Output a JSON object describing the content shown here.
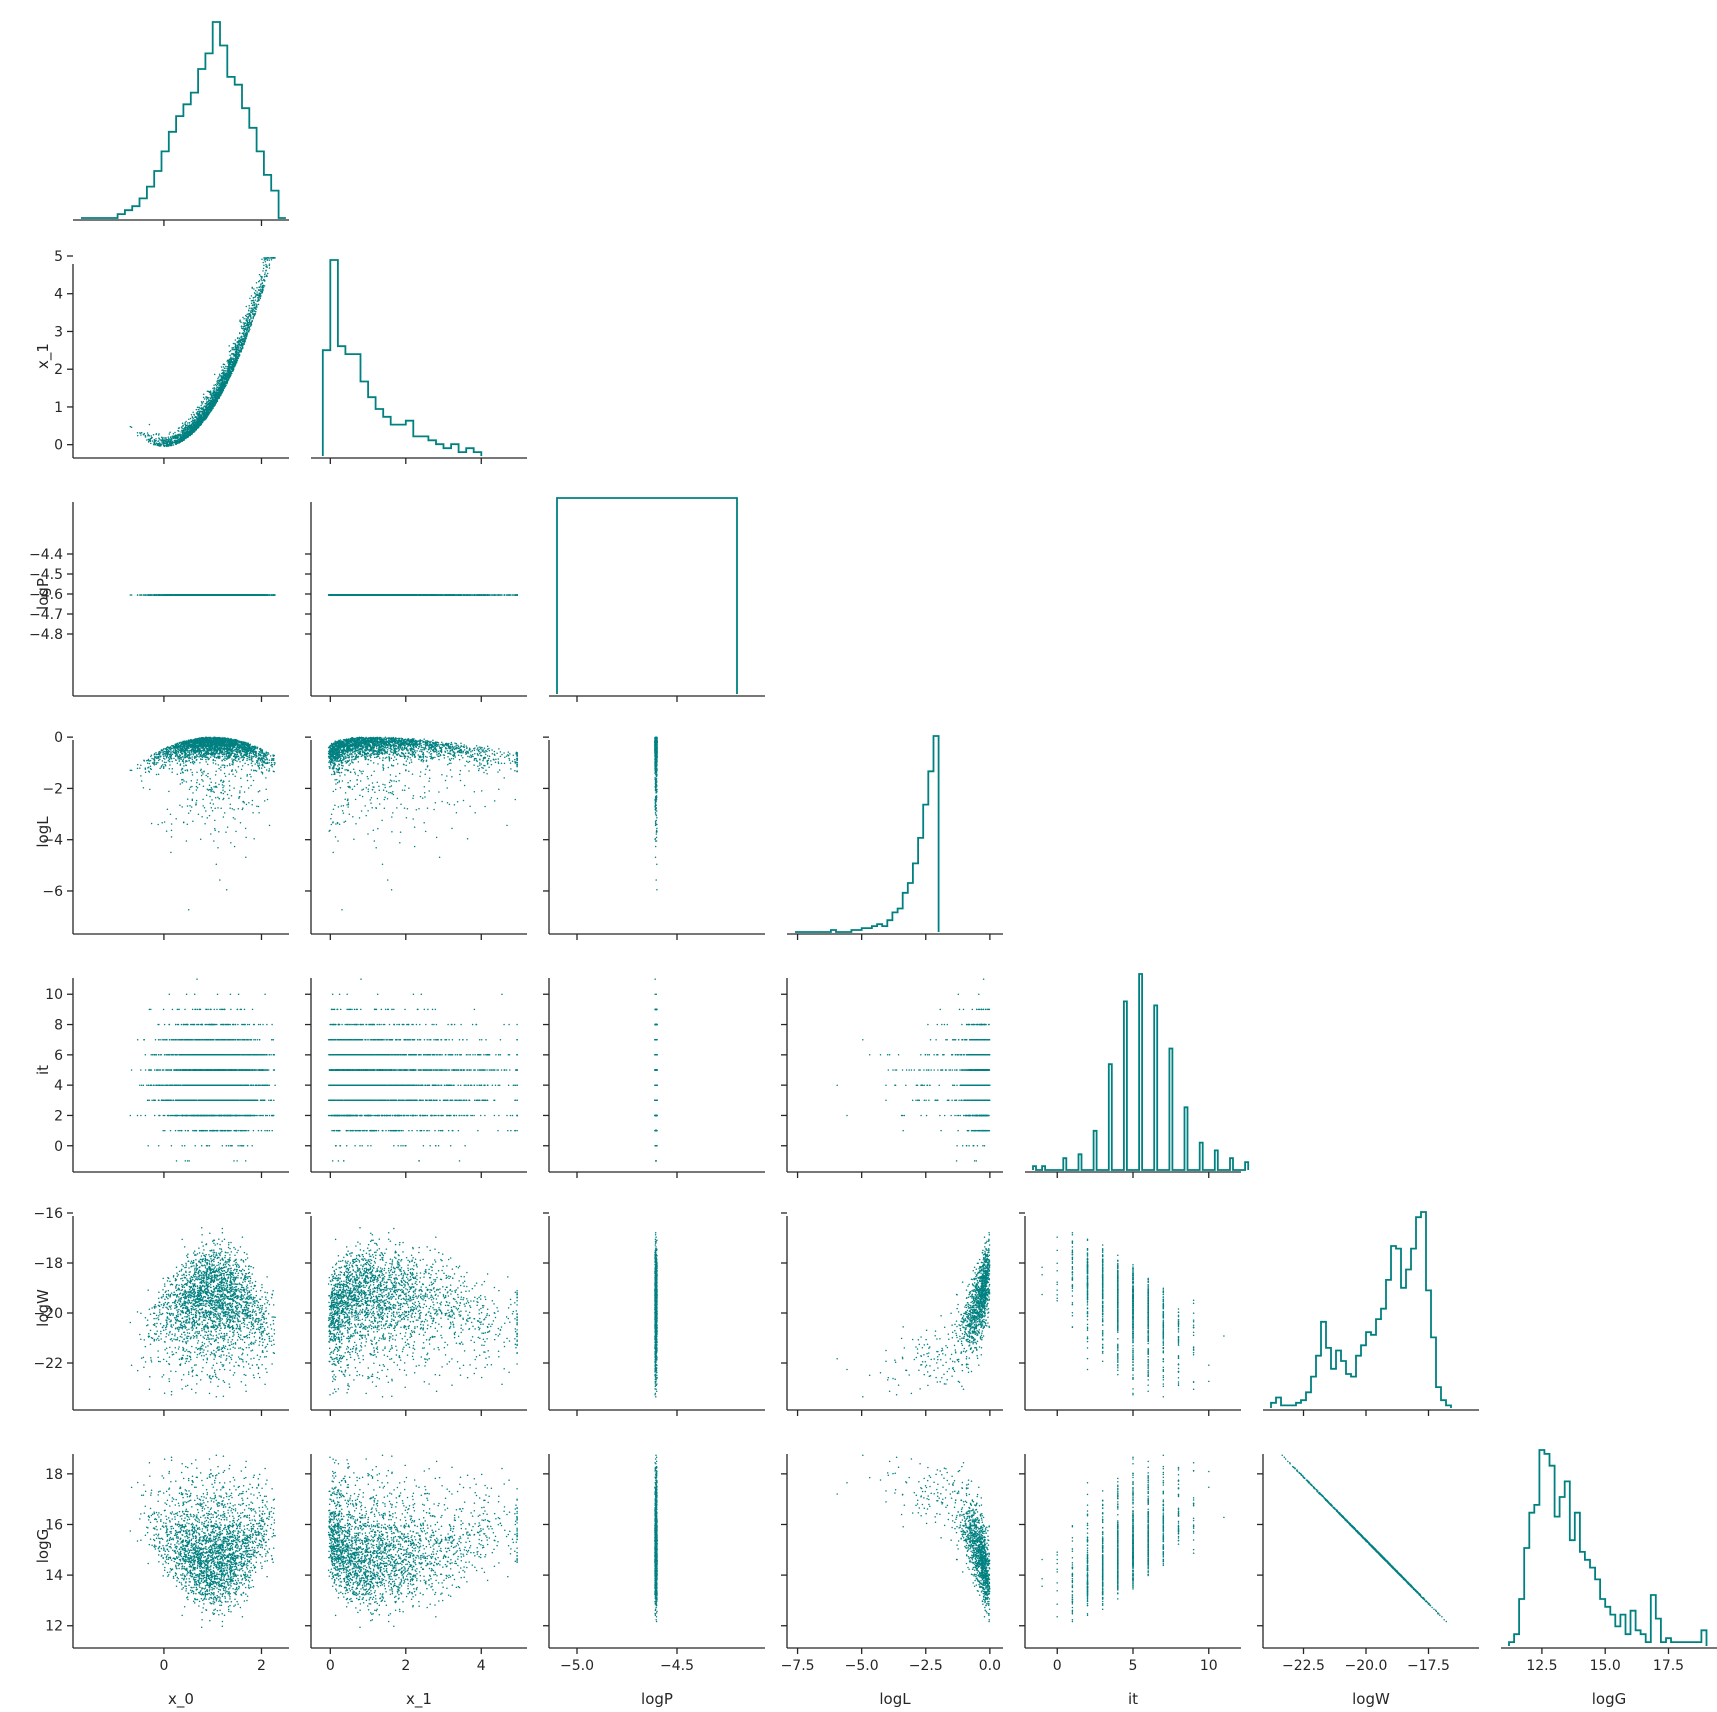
{
  "chart_data": {
    "type": "scatter",
    "layout": "corner pairplot (lower triangle scatter, diagonal step histograms)",
    "marker_color": "#008080",
    "variables": [
      "x_0",
      "x_1",
      "logP",
      "logL",
      "it",
      "logW",
      "logG"
    ],
    "axis_ranges": {
      "x_0": [
        -1.7,
        2.4
      ],
      "x_1": [
        -0.3,
        5.0
      ],
      "logP": [
        -5.1,
        -4.1
      ],
      "logL": [
        -7.6,
        0.2
      ],
      "it": [
        -1.6,
        11.6
      ],
      "logW": [
        -23.8,
        -15.8
      ],
      "logG": [
        11.2,
        19.1
      ]
    },
    "ticks": {
      "x_0": [
        0,
        2
      ],
      "x_1": [
        0,
        2,
        4
      ],
      "logP": [
        -4.4,
        -4.5,
        -4.6,
        -4.7,
        -4.8
      ],
      "logP_bottom": [
        -5.0,
        -4.5
      ],
      "logL": [
        0,
        -2,
        -4,
        -6
      ],
      "logL_bottom": [
        -7.5,
        -5.0,
        -2.5,
        0.0
      ],
      "it": [
        10,
        8,
        6,
        4,
        2,
        0
      ],
      "it_bottom": [
        0,
        5,
        10
      ],
      "logW": [
        -16,
        -18,
        -20,
        -22
      ],
      "logW_bottom": [
        -22.5,
        -20.0,
        -17.5
      ],
      "logG": [
        18,
        16,
        14,
        12
      ],
      "logG_bottom": [
        12.5,
        15.0,
        17.5
      ],
      "x_1_left": [
        5,
        4,
        3,
        2,
        1,
        0
      ]
    },
    "tick_labels": {
      "x_0": [
        "0",
        "2"
      ],
      "x_1": [
        "0",
        "2",
        "4"
      ],
      "x_1_left": [
        "5",
        "4",
        "3",
        "2",
        "1",
        "0"
      ],
      "logP_left": [
        "−4.4",
        "−4.5",
        "−4.6",
        "−4.7",
        "−4.8"
      ],
      "logP_bottom": [
        "−5.0",
        "−4.5"
      ],
      "logL_left": [
        "0",
        "−2",
        "−4",
        "−6"
      ],
      "logL_bottom": [
        "−7.5",
        "−5.0",
        "−2.5",
        "0.0"
      ],
      "it_left": [
        "10",
        "8",
        "6",
        "4",
        "2",
        "0"
      ],
      "it_bottom": [
        "0",
        "5",
        "10"
      ],
      "logW_left": [
        "−16",
        "−18",
        "−20",
        "−22"
      ],
      "logW_bottom": [
        "−22.5",
        "−20.0",
        "−17.5"
      ],
      "logG_left": [
        "18",
        "16",
        "14",
        "12"
      ],
      "logG_bottom": [
        "12.5",
        "15.0",
        "17.5"
      ]
    },
    "histograms": {
      "x_0": {
        "edges_start": -1.7,
        "bin_width": 0.15,
        "counts": [
          0,
          0,
          0,
          0,
          0,
          1,
          2,
          3,
          5,
          8,
          12,
          17,
          22,
          26,
          29,
          32,
          38,
          42,
          50,
          44,
          36,
          34,
          28,
          23,
          17,
          11,
          7,
          0
        ]
      },
      "x_1": {
        "edges_start": -0.2,
        "bin_width": 0.2,
        "counts": [
          27,
          50,
          28,
          26,
          26,
          19,
          15,
          12,
          10,
          8,
          8,
          9,
          5,
          5,
          4,
          3,
          2,
          3,
          1,
          2,
          1
        ]
      },
      "logP": {
        "edges_start": -5.1,
        "bin_width": 0.9,
        "counts": [
          1
        ]
      },
      "logL": {
        "edges_start": -7.6,
        "bin_width": 0.2,
        "counts": [
          0,
          0,
          0,
          0,
          0,
          0,
          0,
          1,
          0,
          0,
          0,
          1,
          1,
          2,
          2,
          3,
          4,
          3,
          6,
          10,
          12,
          20,
          25,
          35,
          48,
          65,
          82,
          100
        ]
      },
      "it": {
        "edges_start": -1.6,
        "bin_width": 0.2,
        "counts": [
          1,
          0,
          0,
          1,
          0,
          0,
          0,
          0,
          0,
          0,
          3,
          0,
          0,
          0,
          0,
          4,
          0,
          0,
          0,
          0,
          10,
          0,
          0,
          0,
          0,
          27,
          0,
          0,
          0,
          0,
          43,
          0,
          0,
          0,
          0,
          50,
          0,
          0,
          0,
          0,
          42,
          0,
          0,
          0,
          0,
          31,
          0,
          0,
          0,
          0,
          16,
          0,
          0,
          0,
          0,
          7,
          0,
          0,
          0,
          0,
          5,
          0,
          0,
          0,
          0,
          3,
          0,
          0,
          0,
          0,
          2
        ]
      },
      "logW": {
        "edges_start": -23.8,
        "bin_width": 0.2,
        "counts": [
          2,
          4,
          1,
          1,
          1,
          2,
          3,
          6,
          12,
          20,
          33,
          23,
          15,
          22,
          18,
          13,
          12,
          20,
          24,
          29,
          28,
          34,
          38,
          49,
          62,
          61,
          46,
          53,
          61,
          73,
          75,
          45,
          27,
          8,
          3,
          1
        ]
      },
      "logG": {
        "edges_start": 11.2,
        "bin_width": 0.2,
        "counts": [
          1,
          3,
          12,
          25,
          34,
          36,
          50,
          49,
          46,
          33,
          38,
          42,
          27,
          34,
          24,
          22,
          20,
          17,
          12,
          10,
          8,
          5,
          8,
          3,
          9,
          4,
          3,
          1,
          13,
          7,
          1,
          2,
          1,
          1,
          1,
          1,
          1,
          1,
          4
        ]
      }
    },
    "scatter_panels": [
      [
        "x_0",
        "x_1"
      ],
      [
        "x_0",
        "logP"
      ],
      [
        "x_1",
        "logP"
      ],
      [
        "x_0",
        "logL"
      ],
      [
        "x_1",
        "logL"
      ],
      [
        "logP",
        "logL"
      ],
      [
        "x_0",
        "it"
      ],
      [
        "x_1",
        "it"
      ],
      [
        "logP",
        "it"
      ],
      [
        "logL",
        "it"
      ],
      [
        "x_0",
        "logW"
      ],
      [
        "x_1",
        "logW"
      ],
      [
        "logP",
        "logW"
      ],
      [
        "logL",
        "logW"
      ],
      [
        "it",
        "logW"
      ],
      [
        "x_0",
        "logG"
      ],
      [
        "x_1",
        "logG"
      ],
      [
        "logP",
        "logG"
      ],
      [
        "logL",
        "logG"
      ],
      [
        "it",
        "logG"
      ],
      [
        "logW",
        "logG"
      ]
    ],
    "grid": false,
    "legend": "none"
  }
}
